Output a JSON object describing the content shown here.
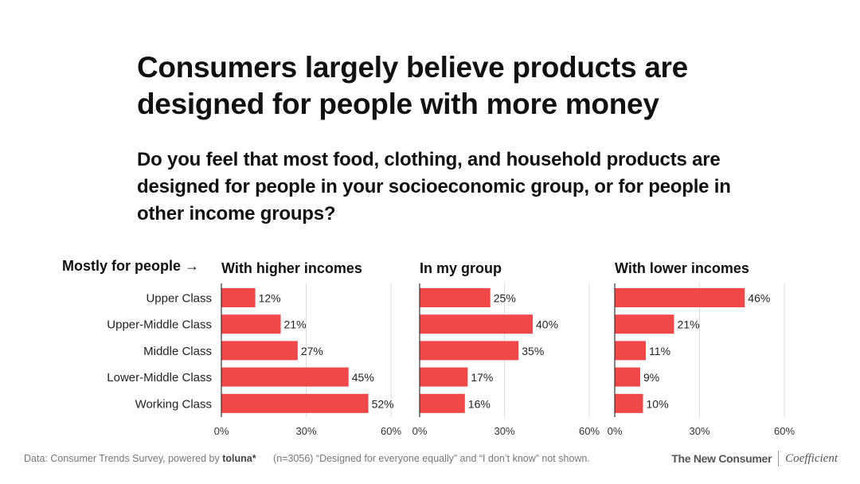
{
  "title": "Consumers largely believe products are designed for people with more money",
  "subtitle": "Do you feel that most food, clothing, and household products are designed for people in your socioeconomic group, or for people in other income groups?",
  "row_header": "Mostly for people →",
  "footer": {
    "source_prefix": "Data: Consumer Trends Survey, powered by",
    "source_brand": "toluna*",
    "note": "(n=3056) “Designed for everyone equally” and “I don’t know” not shown.",
    "logo_left": "The New Consumer",
    "logo_right": "Coefficient"
  },
  "colors": {
    "bar": "#f04848",
    "text": "#111111",
    "gridline": "#dddddd",
    "axis": "#333333",
    "footer": "#777777"
  },
  "chart_data": {
    "type": "bar",
    "orientation": "horizontal",
    "layout": "small-multiples",
    "categories": [
      "Upper Class",
      "Upper-Middle Class",
      "Middle Class",
      "Lower-Middle Class",
      "Working Class"
    ],
    "xlim": [
      0,
      60
    ],
    "ticks": [
      0,
      30,
      60
    ],
    "tick_labels": [
      "0%",
      "30%",
      "60%"
    ],
    "grid": true,
    "series": [
      {
        "name": "With higher incomes",
        "values": [
          12,
          21,
          27,
          45,
          52
        ],
        "labels": [
          "12%",
          "21%",
          "27%",
          "45%",
          "52%"
        ]
      },
      {
        "name": "In my group",
        "values": [
          25,
          40,
          35,
          17,
          16
        ],
        "labels": [
          "25%",
          "40%",
          "35%",
          "17%",
          "16%"
        ]
      },
      {
        "name": "With lower incomes",
        "values": [
          46,
          21,
          11,
          9,
          10
        ],
        "labels": [
          "46%",
          "21%",
          "11%",
          "9%",
          "10%"
        ]
      }
    ]
  }
}
